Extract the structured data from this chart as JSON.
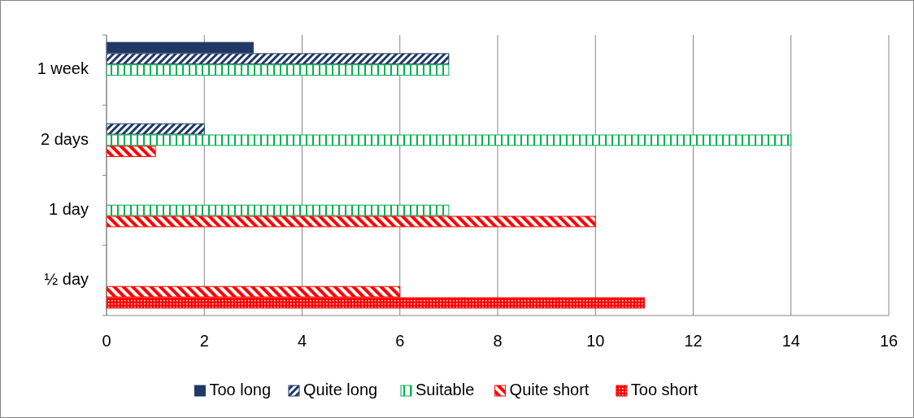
{
  "chart_data": {
    "type": "bar",
    "orientation": "horizontal",
    "categories": [
      "1 week",
      "2 days",
      "1 day",
      "½ day"
    ],
    "series": [
      {
        "name": "Too long",
        "color": "#1f3864",
        "values": [
          3,
          0,
          0,
          0
        ]
      },
      {
        "name": "Quite long",
        "color": "#1f3864",
        "values": [
          7,
          2,
          0,
          0
        ]
      },
      {
        "name": "Suitable",
        "color": "#00b050",
        "values": [
          7,
          14,
          7,
          0
        ]
      },
      {
        "name": "Quite short",
        "color": "#ff0000",
        "values": [
          0,
          1,
          10,
          6
        ]
      },
      {
        "name": "Too short",
        "color": "#ff0000",
        "values": [
          0,
          0,
          0,
          11
        ]
      }
    ],
    "xlim": [
      0,
      16
    ],
    "xticks": [
      0,
      2,
      4,
      6,
      8,
      10,
      12,
      14,
      16
    ],
    "grid": "x",
    "legend": "bottom"
  }
}
